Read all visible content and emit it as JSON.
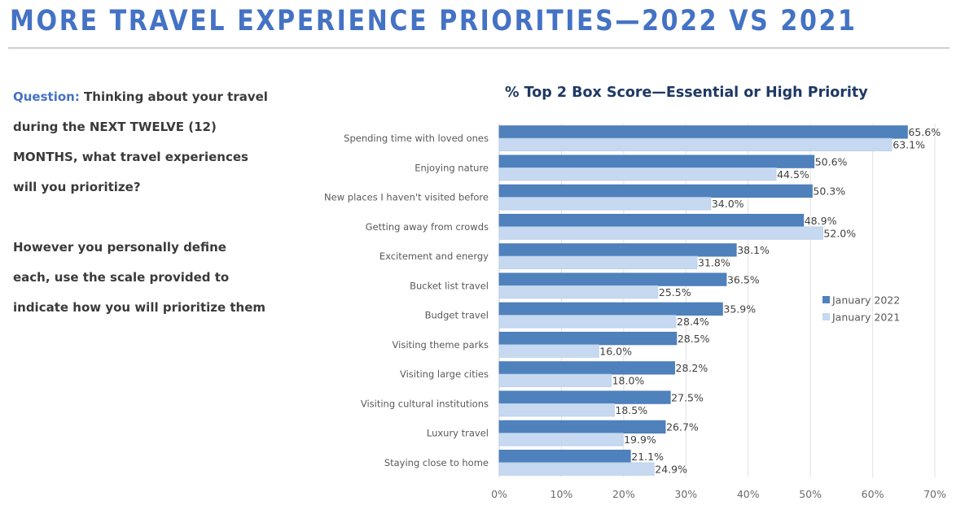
{
  "page": {
    "title": "MORE TRAVEL EXPERIENCE PRIORITIES—2022 VS 2021",
    "question_label": "Question:",
    "question_lines": [
      " Thinking about your travel",
      "during the NEXT TWELVE (12)",
      "MONTHS, what travel experiences",
      "will you prioritize?"
    ],
    "instruction_lines": [
      "However you personally define",
      "each, use the scale provided to",
      "indicate how you will prioritize them"
    ]
  },
  "colors": {
    "title": "#4472c4",
    "series_2022": "#4f81bd",
    "series_2021": "#c6d9f1",
    "gridline": "#e6e6e6",
    "chart_title": "#1f3864"
  },
  "chart_data": {
    "type": "bar",
    "orientation": "horizontal",
    "title": "% Top 2 Box Score—Essential or High Priority",
    "xlabel": "",
    "ylabel": "",
    "xlim": [
      0,
      70
    ],
    "x_ticks": [
      "0%",
      "10%",
      "20%",
      "30%",
      "40%",
      "50%",
      "60%",
      "70%"
    ],
    "x_tick_values": [
      0,
      10,
      20,
      30,
      40,
      50,
      60,
      70
    ],
    "grid": true,
    "legend_position": "right",
    "categories": [
      "Spending time with loved ones",
      "Enjoying nature",
      "New places I haven't visited before",
      "Getting away from crowds",
      "Excitement and energy",
      "Bucket list travel",
      "Budget travel",
      "Visiting theme parks",
      "Visiting large cities",
      "Visiting cultural institutions",
      "Luxury travel",
      "Staying close to home"
    ],
    "series": [
      {
        "name": "January 2022",
        "color": "#4f81bd",
        "values": [
          65.6,
          50.6,
          50.3,
          48.9,
          38.1,
          36.5,
          35.9,
          28.5,
          28.2,
          27.5,
          26.7,
          21.1
        ],
        "labels": [
          "65.6%",
          "50.6%",
          "50.3%",
          "48.9%",
          "38.1%",
          "36.5%",
          "35.9%",
          "28.5%",
          "28.2%",
          "27.5%",
          "26.7%",
          "21.1%"
        ]
      },
      {
        "name": "January 2021",
        "color": "#c6d9f1",
        "values": [
          63.1,
          44.5,
          34.0,
          52.0,
          31.8,
          25.5,
          28.4,
          16.0,
          18.0,
          18.5,
          19.9,
          24.9
        ],
        "labels": [
          "63.1%",
          "44.5%",
          "34.0%",
          "52.0%",
          "31.8%",
          "25.5%",
          "28.4%",
          "16.0%",
          "18.0%",
          "18.5%",
          "19.9%",
          "24.9%"
        ]
      }
    ]
  }
}
